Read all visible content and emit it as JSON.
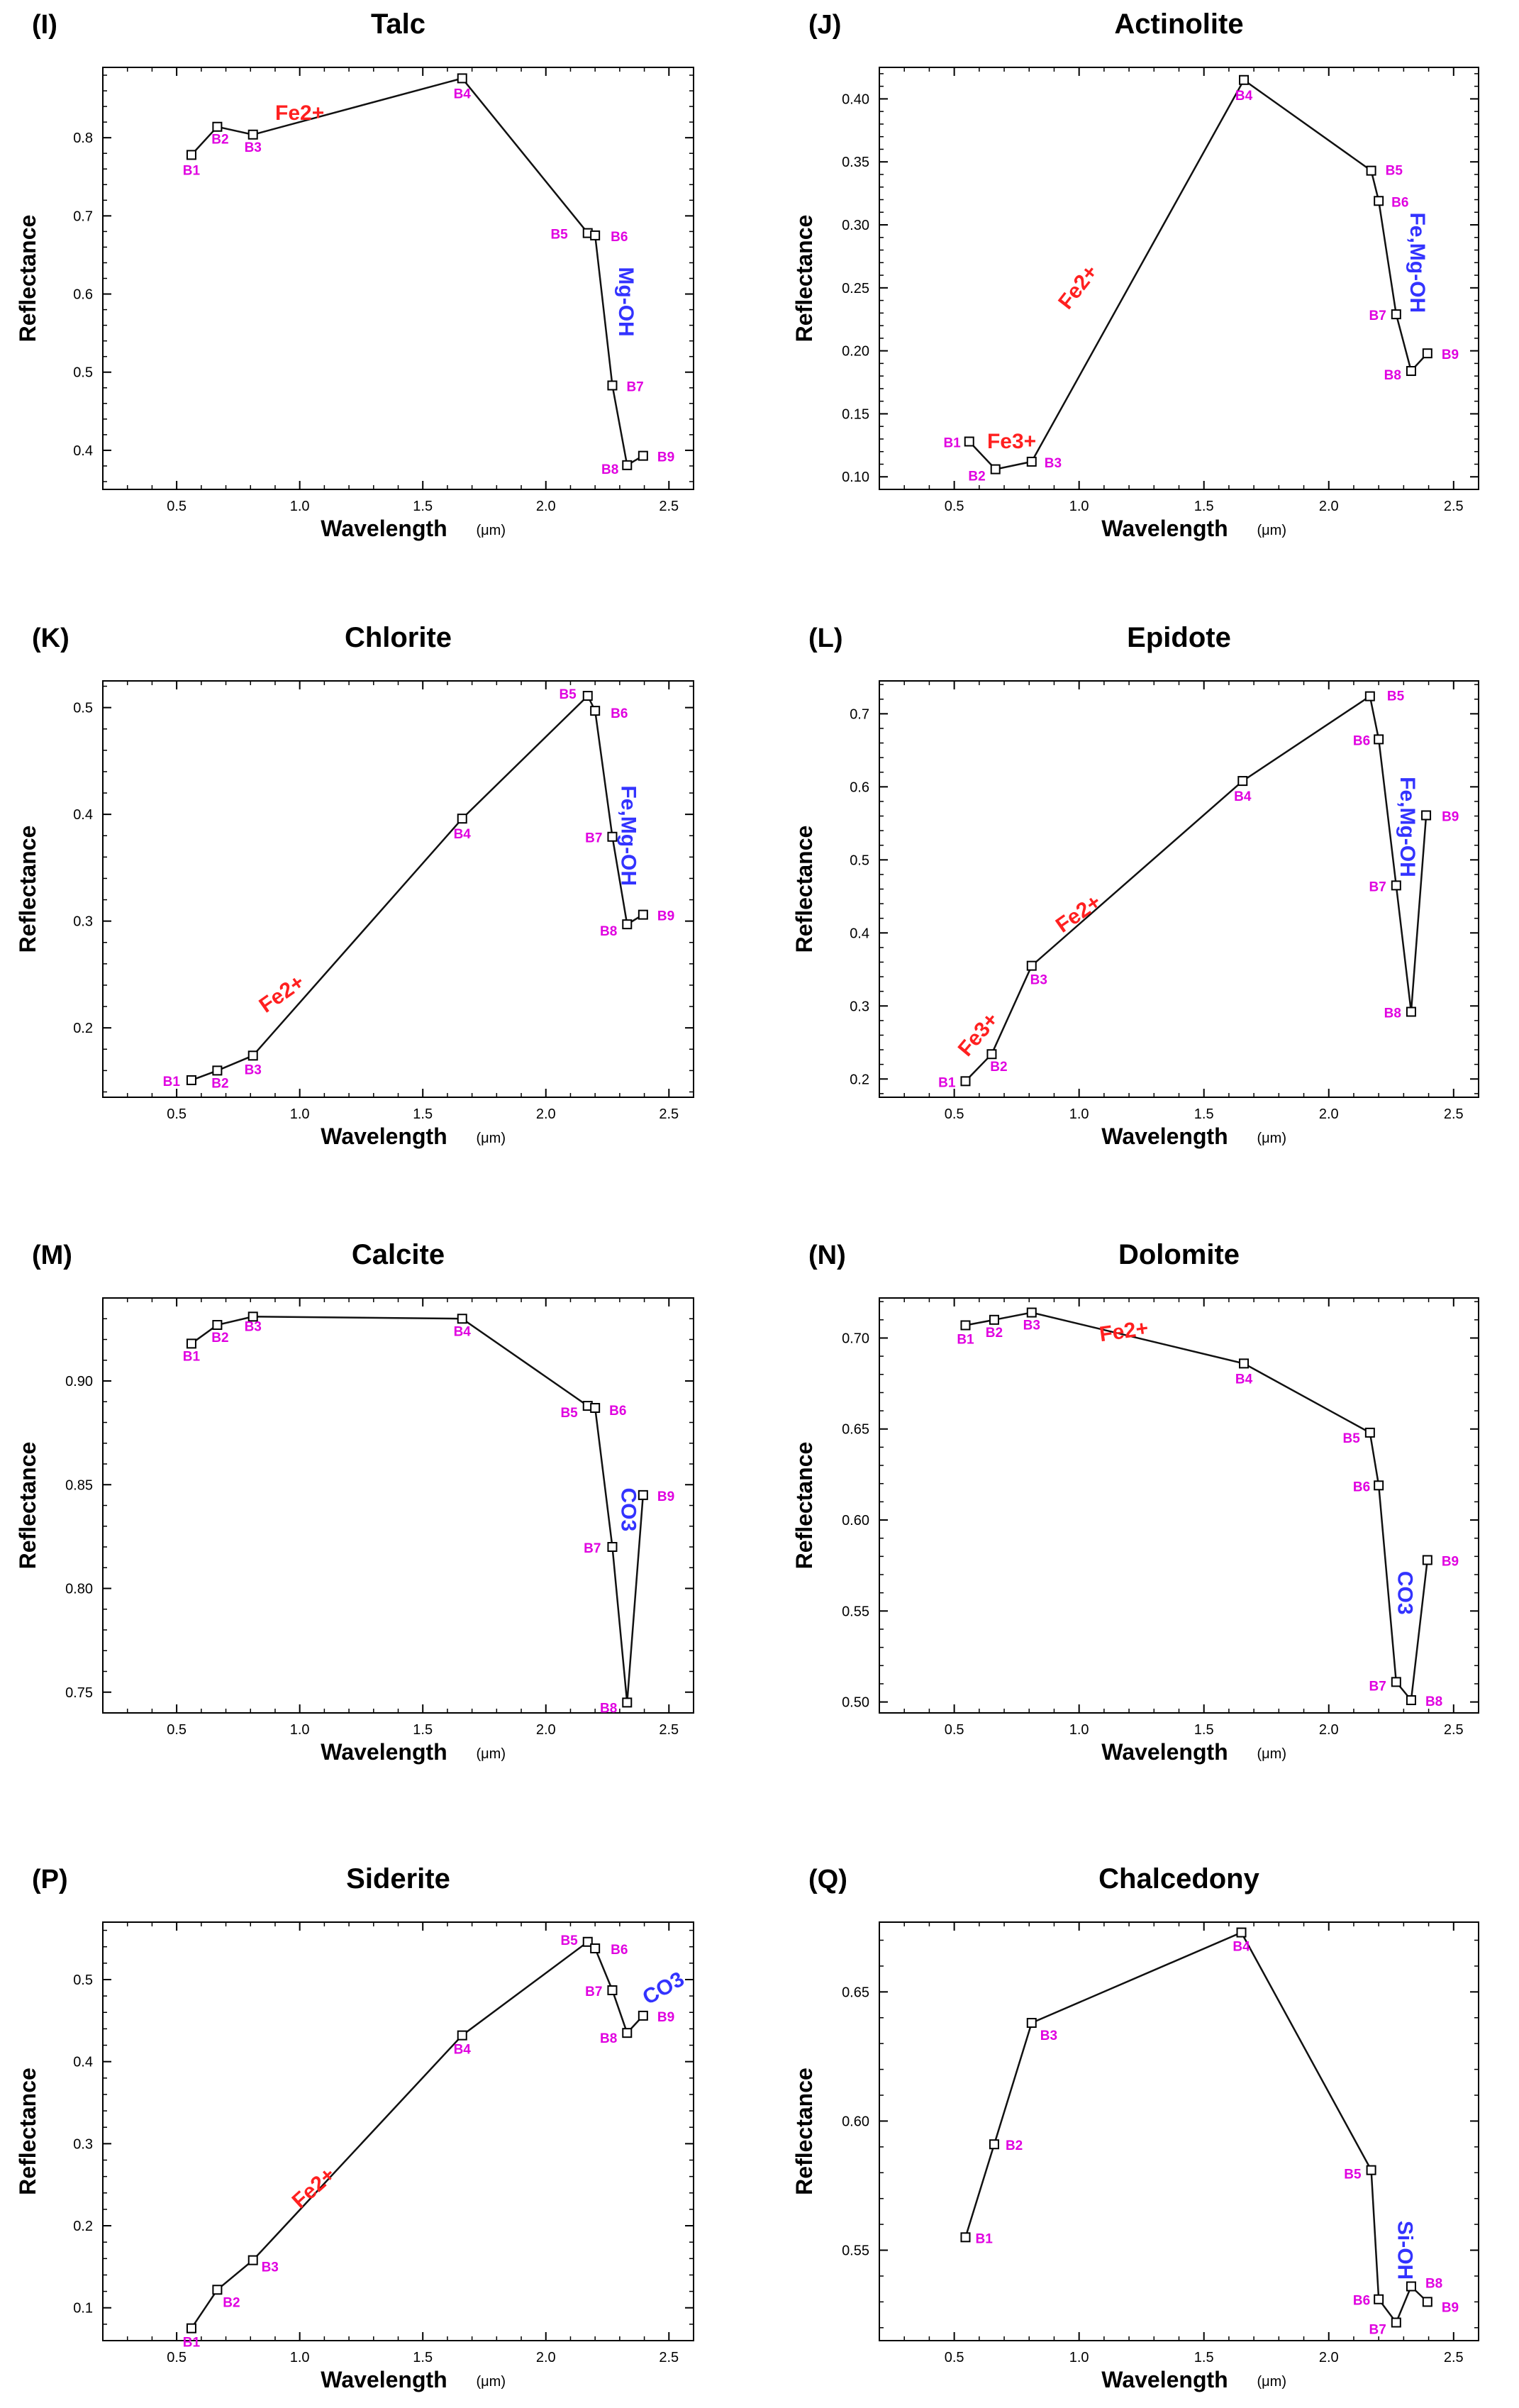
{
  "figure": {
    "xlabel": "Wavelength",
    "xunit": "(μm)",
    "ylabel": "Reflectance"
  },
  "colors": {
    "line": "#111111",
    "band_label": "#e000e0",
    "fe_annotation": "#ff2020",
    "oh_annotation": "#3333ff"
  },
  "chart_data": [
    {
      "type": "line",
      "panel": "(I)",
      "title": "Talc",
      "xlabel": "Wavelength (μm)",
      "ylabel": "Reflectance",
      "xlim": [
        0.2,
        2.6
      ],
      "ylim": [
        0.35,
        0.89
      ],
      "xticks": [
        0.5,
        1.0,
        1.5,
        2.0,
        2.5
      ],
      "yticks": [
        0.4,
        0.5,
        0.6,
        0.7,
        0.8
      ],
      "xtick_labels": [
        "0.5",
        "1.0",
        "1.5",
        "2.0",
        "2.5"
      ],
      "ytick_labels": [
        "0.4",
        "0.5",
        "0.6",
        "0.7",
        "0.8"
      ],
      "bands": [
        "B1",
        "B2",
        "B3",
        "B4",
        "B5",
        "B6",
        "B7",
        "B8",
        "B9"
      ],
      "x": [
        0.56,
        0.665,
        0.81,
        1.66,
        2.17,
        2.2,
        2.27,
        2.33,
        2.395
      ],
      "y": [
        0.778,
        0.814,
        0.804,
        0.876,
        0.678,
        0.675,
        0.483,
        0.381,
        0.393
      ],
      "annotations": [
        {
          "text": "Fe2+",
          "x": 1.0,
          "y": 0.83,
          "kind": "fe",
          "rotate": 0
        },
        {
          "text": "Mg-OH",
          "x": 2.32,
          "y": 0.59,
          "kind": "oh",
          "rotate": 90
        }
      ]
    },
    {
      "type": "line",
      "panel": "(J)",
      "title": "Actinolite",
      "xlabel": "Wavelength (μm)",
      "ylabel": "Reflectance",
      "xlim": [
        0.2,
        2.6
      ],
      "ylim": [
        0.09,
        0.425
      ],
      "xticks": [
        0.5,
        1.0,
        1.5,
        2.0,
        2.5
      ],
      "yticks": [
        0.1,
        0.15,
        0.2,
        0.25,
        0.3,
        0.35,
        0.4
      ],
      "xtick_labels": [
        "0.5",
        "1.0",
        "1.5",
        "2.0",
        "2.5"
      ],
      "ytick_labels": [
        "0.10",
        "0.15",
        "0.20",
        "0.25",
        "0.30",
        "0.35",
        "0.40"
      ],
      "bands": [
        "B1",
        "B2",
        "B3",
        "B4",
        "B5",
        "B6",
        "B7",
        "B8",
        "B9"
      ],
      "x": [
        0.56,
        0.665,
        0.81,
        1.66,
        2.17,
        2.2,
        2.27,
        2.33,
        2.395
      ],
      "y": [
        0.128,
        0.106,
        0.112,
        0.415,
        0.343,
        0.319,
        0.229,
        0.184,
        0.198
      ],
      "annotations": [
        {
          "text": "Fe3+",
          "x": 0.73,
          "y": 0.127,
          "kind": "fe",
          "rotate": 0
        },
        {
          "text": "Fe2+",
          "x": 1.0,
          "y": 0.25,
          "kind": "fe",
          "rotate": -52
        },
        {
          "text": "Fe,Mg-OH",
          "x": 2.35,
          "y": 0.27,
          "kind": "oh",
          "rotate": 90
        }
      ]
    },
    {
      "type": "line",
      "panel": "(K)",
      "title": "Chlorite",
      "xlabel": "Wavelength (μm)",
      "ylabel": "Reflectance",
      "xlim": [
        0.2,
        2.6
      ],
      "ylim": [
        0.135,
        0.525
      ],
      "xticks": [
        0.5,
        1.0,
        1.5,
        2.0,
        2.5
      ],
      "yticks": [
        0.2,
        0.3,
        0.4,
        0.5
      ],
      "xtick_labels": [
        "0.5",
        "1.0",
        "1.5",
        "2.0",
        "2.5"
      ],
      "ytick_labels": [
        "0.2",
        "0.3",
        "0.4",
        "0.5"
      ],
      "bands": [
        "B1",
        "B2",
        "B3",
        "B4",
        "B5",
        "B6",
        "B7",
        "B8",
        "B9"
      ],
      "x": [
        0.56,
        0.665,
        0.81,
        1.66,
        2.17,
        2.2,
        2.27,
        2.33,
        2.395
      ],
      "y": [
        0.151,
        0.16,
        0.174,
        0.396,
        0.511,
        0.497,
        0.379,
        0.297,
        0.306
      ],
      "annotations": [
        {
          "text": "Fe2+",
          "x": 0.93,
          "y": 0.231,
          "kind": "fe",
          "rotate": -35
        },
        {
          "text": "Fe,Mg-OH",
          "x": 2.33,
          "y": 0.38,
          "kind": "oh",
          "rotate": 90
        }
      ]
    },
    {
      "type": "line",
      "panel": "(L)",
      "title": "Epidote",
      "xlabel": "Wavelength (μm)",
      "ylabel": "Reflectance",
      "xlim": [
        0.2,
        2.6
      ],
      "ylim": [
        0.175,
        0.745
      ],
      "xticks": [
        0.5,
        1.0,
        1.5,
        2.0,
        2.5
      ],
      "yticks": [
        0.2,
        0.3,
        0.4,
        0.5,
        0.6,
        0.7
      ],
      "xtick_labels": [
        "0.5",
        "1.0",
        "1.5",
        "2.0",
        "2.5"
      ],
      "ytick_labels": [
        "0.2",
        "0.3",
        "0.4",
        "0.5",
        "0.6",
        "0.7"
      ],
      "bands": [
        "B1",
        "B2",
        "B3",
        "B4",
        "B5",
        "B6",
        "B7",
        "B8",
        "B9"
      ],
      "x": [
        0.545,
        0.65,
        0.81,
        1.655,
        2.165,
        2.2,
        2.27,
        2.33,
        2.39
      ],
      "y": [
        0.197,
        0.234,
        0.355,
        0.608,
        0.724,
        0.665,
        0.465,
        0.292,
        0.561
      ],
      "annotations": [
        {
          "text": "Fe3+",
          "x": 0.6,
          "y": 0.26,
          "kind": "fe",
          "rotate": -50
        },
        {
          "text": "Fe2+",
          "x": 1.0,
          "y": 0.425,
          "kind": "fe",
          "rotate": -35
        },
        {
          "text": "Fe,Mg-OH",
          "x": 2.31,
          "y": 0.545,
          "kind": "oh",
          "rotate": 90
        }
      ]
    },
    {
      "type": "line",
      "panel": "(M)",
      "title": "Calcite",
      "xlabel": "Wavelength (μm)",
      "ylabel": "Reflectance",
      "xlim": [
        0.2,
        2.6
      ],
      "ylim": [
        0.74,
        0.94
      ],
      "xticks": [
        0.5,
        1.0,
        1.5,
        2.0,
        2.5
      ],
      "yticks": [
        0.75,
        0.8,
        0.85,
        0.9
      ],
      "xtick_labels": [
        "0.5",
        "1.0",
        "1.5",
        "2.0",
        "2.5"
      ],
      "ytick_labels": [
        "0.75",
        "0.80",
        "0.85",
        "0.90"
      ],
      "bands": [
        "B1",
        "B2",
        "B3",
        "B4",
        "B5",
        "B6",
        "B7",
        "B8",
        "B9"
      ],
      "x": [
        0.56,
        0.665,
        0.81,
        1.66,
        2.17,
        2.2,
        2.27,
        2.33,
        2.395
      ],
      "y": [
        0.918,
        0.927,
        0.931,
        0.93,
        0.888,
        0.887,
        0.82,
        0.745,
        0.845
      ],
      "annotations": [
        {
          "text": "CO3",
          "x": 2.33,
          "y": 0.838,
          "kind": "oh",
          "rotate": 90
        }
      ]
    },
    {
      "type": "line",
      "panel": "(N)",
      "title": "Dolomite",
      "xlabel": "Wavelength (μm)",
      "ylabel": "Reflectance",
      "xlim": [
        0.2,
        2.6
      ],
      "ylim": [
        0.494,
        0.722
      ],
      "xticks": [
        0.5,
        1.0,
        1.5,
        2.0,
        2.5
      ],
      "yticks": [
        0.5,
        0.55,
        0.6,
        0.65,
        0.7
      ],
      "xtick_labels": [
        "0.5",
        "1.0",
        "1.5",
        "2.0",
        "2.5"
      ],
      "ytick_labels": [
        "0.50",
        "0.55",
        "0.60",
        "0.65",
        "0.70"
      ],
      "bands": [
        "B1",
        "B2",
        "B3",
        "B4",
        "B5",
        "B6",
        "B7",
        "B8",
        "B9"
      ],
      "x": [
        0.545,
        0.66,
        0.81,
        1.66,
        2.165,
        2.2,
        2.27,
        2.33,
        2.395
      ],
      "y": [
        0.707,
        0.71,
        0.714,
        0.686,
        0.648,
        0.619,
        0.511,
        0.501,
        0.578
      ],
      "annotations": [
        {
          "text": "Fe2+",
          "x": 1.18,
          "y": 0.703,
          "kind": "fe",
          "rotate": -8
        },
        {
          "text": "CO3",
          "x": 2.3,
          "y": 0.56,
          "kind": "oh",
          "rotate": 90
        }
      ]
    },
    {
      "type": "line",
      "panel": "(P)",
      "title": "Siderite",
      "xlabel": "Wavelength (μm)",
      "ylabel": "Reflectance",
      "xlim": [
        0.2,
        2.6
      ],
      "ylim": [
        0.06,
        0.57
      ],
      "xticks": [
        0.5,
        1.0,
        1.5,
        2.0,
        2.5
      ],
      "yticks": [
        0.1,
        0.2,
        0.3,
        0.4,
        0.5
      ],
      "xtick_labels": [
        "0.5",
        "1.0",
        "1.5",
        "2.0",
        "2.5"
      ],
      "ytick_labels": [
        "0.1",
        "0.2",
        "0.3",
        "0.4",
        "0.5"
      ],
      "bands": [
        "B1",
        "B2",
        "B3",
        "B4",
        "B5",
        "B6",
        "B7",
        "B8",
        "B9"
      ],
      "x": [
        0.56,
        0.665,
        0.81,
        1.66,
        2.17,
        2.2,
        2.27,
        2.33,
        2.395
      ],
      "y": [
        0.075,
        0.122,
        0.158,
        0.432,
        0.546,
        0.538,
        0.487,
        0.435,
        0.456
      ],
      "annotations": [
        {
          "text": "Fe2+",
          "x": 1.06,
          "y": 0.245,
          "kind": "fe",
          "rotate": -42
        },
        {
          "text": "CO3",
          "x": 2.48,
          "y": 0.488,
          "kind": "oh",
          "rotate": -30
        }
      ]
    },
    {
      "type": "line",
      "panel": "(Q)",
      "title": "Chalcedony",
      "xlabel": "Wavelength (μm)",
      "ylabel": "Reflectance",
      "xlim": [
        0.2,
        2.6
      ],
      "ylim": [
        0.515,
        0.677
      ],
      "xticks": [
        0.5,
        1.0,
        1.5,
        2.0,
        2.5
      ],
      "yticks": [
        0.55,
        0.6,
        0.65
      ],
      "xtick_labels": [
        "0.5",
        "1.0",
        "1.5",
        "2.0",
        "2.5"
      ],
      "ytick_labels": [
        "0.55",
        "0.60",
        "0.65"
      ],
      "bands": [
        "B1",
        "B2",
        "B3",
        "B4",
        "B5",
        "B6",
        "B7",
        "B8",
        "B9"
      ],
      "x": [
        0.545,
        0.66,
        0.81,
        1.65,
        2.17,
        2.2,
        2.27,
        2.33,
        2.395
      ],
      "y": [
        0.555,
        0.591,
        0.638,
        0.673,
        0.581,
        0.531,
        0.522,
        0.536,
        0.53
      ],
      "annotations": [
        {
          "text": "Si-OH",
          "x": 2.3,
          "y": 0.55,
          "kind": "oh",
          "rotate": 90
        }
      ]
    }
  ]
}
